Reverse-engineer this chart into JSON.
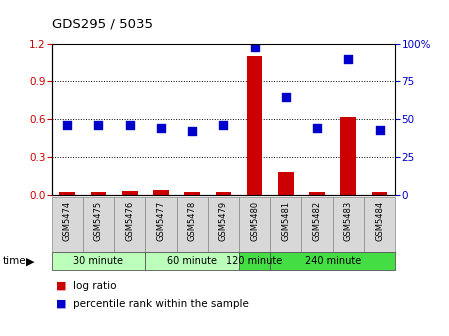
{
  "title": "GDS295 / 5035",
  "samples": [
    "GSM5474",
    "GSM5475",
    "GSM5476",
    "GSM5477",
    "GSM5478",
    "GSM5479",
    "GSM5480",
    "GSM5481",
    "GSM5482",
    "GSM5483",
    "GSM5484"
  ],
  "log_ratio": [
    0.02,
    0.02,
    0.03,
    0.04,
    0.02,
    0.02,
    1.1,
    0.18,
    0.02,
    0.62,
    0.02
  ],
  "percentile": [
    46,
    46,
    46,
    44,
    42,
    46,
    98,
    65,
    44,
    90,
    43
  ],
  "bar_color": "#cc0000",
  "dot_color": "#0000cc",
  "ylim_left": [
    0,
    1.2
  ],
  "ylim_right": [
    0,
    100
  ],
  "yticks_left": [
    0.0,
    0.3,
    0.6,
    0.9,
    1.2
  ],
  "yticks_right": [
    0,
    25,
    50,
    75,
    100
  ],
  "group_spans": [
    {
      "label": "30 minute",
      "start": 0,
      "end": 2,
      "color": "#bbffbb"
    },
    {
      "label": "60 minute",
      "start": 3,
      "end": 5,
      "color": "#bbffbb"
    },
    {
      "label": "120 minute",
      "start": 6,
      "end": 6,
      "color": "#44dd44"
    },
    {
      "label": "240 minute",
      "start": 7,
      "end": 10,
      "color": "#44dd44"
    }
  ],
  "grid_color": "#000000",
  "bg_color": "#ffffff",
  "tick_color_left": "#cc0000",
  "tick_color_right": "#0000cc",
  "bar_width": 0.5,
  "dot_size": 30,
  "legend_log_ratio": "log ratio",
  "legend_percentile": "percentile rank within the sample",
  "sample_box_color": "#d8d8d8"
}
